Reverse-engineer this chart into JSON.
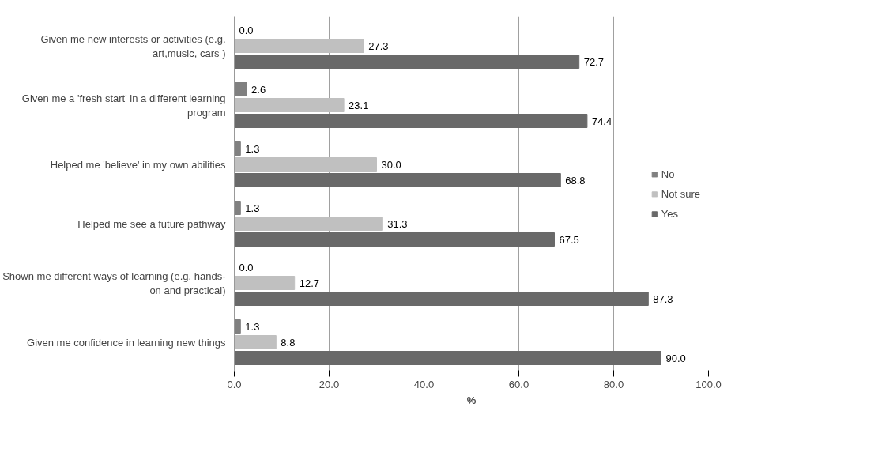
{
  "chart_data": {
    "type": "bar",
    "orientation": "horizontal",
    "xlabel": "%",
    "categories": [
      "Given me new interests or activities (e.g. art,music, cars )",
      "Given me a 'fresh start' in a different learning program",
      "Helped me 'believe' in my own abilities",
      "Helped me see a future pathway",
      "Shown me different ways of learning (e.g. hands-on and practical)",
      "Given me confidence in learning new things"
    ],
    "series": [
      {
        "name": "No",
        "color": "#808080",
        "values": [
          0.0,
          2.6,
          1.3,
          1.3,
          0.0,
          1.3
        ],
        "value_labels": [
          "0.0",
          "2.6",
          "1.3",
          "1.3",
          "0.0",
          "1.3"
        ]
      },
      {
        "name": "Not sure",
        "color": "#c0c0c0",
        "values": [
          27.3,
          23.1,
          30.0,
          31.3,
          12.7,
          8.8
        ],
        "value_labels": [
          "27.3",
          "23.1",
          "30.0",
          "31.3",
          "12.7",
          "8.8"
        ]
      },
      {
        "name": "Yes",
        "color": "#696969",
        "values": [
          72.7,
          74.4,
          68.8,
          67.5,
          87.3,
          90.0
        ],
        "value_labels": [
          "72.7",
          "74.4",
          "68.8",
          "67.5",
          "87.3",
          "90.0"
        ]
      }
    ],
    "xlim": [
      0,
      100
    ],
    "xticks": [
      {
        "value": 0,
        "label": "0.0"
      },
      {
        "value": 20,
        "label": "20.0"
      },
      {
        "value": 40,
        "label": "40.0"
      },
      {
        "value": 60,
        "label": "60.0"
      },
      {
        "value": 80,
        "label": "80.0"
      },
      {
        "value": 100,
        "label": "100.0"
      }
    ],
    "grid": "x",
    "legend": "right"
  }
}
